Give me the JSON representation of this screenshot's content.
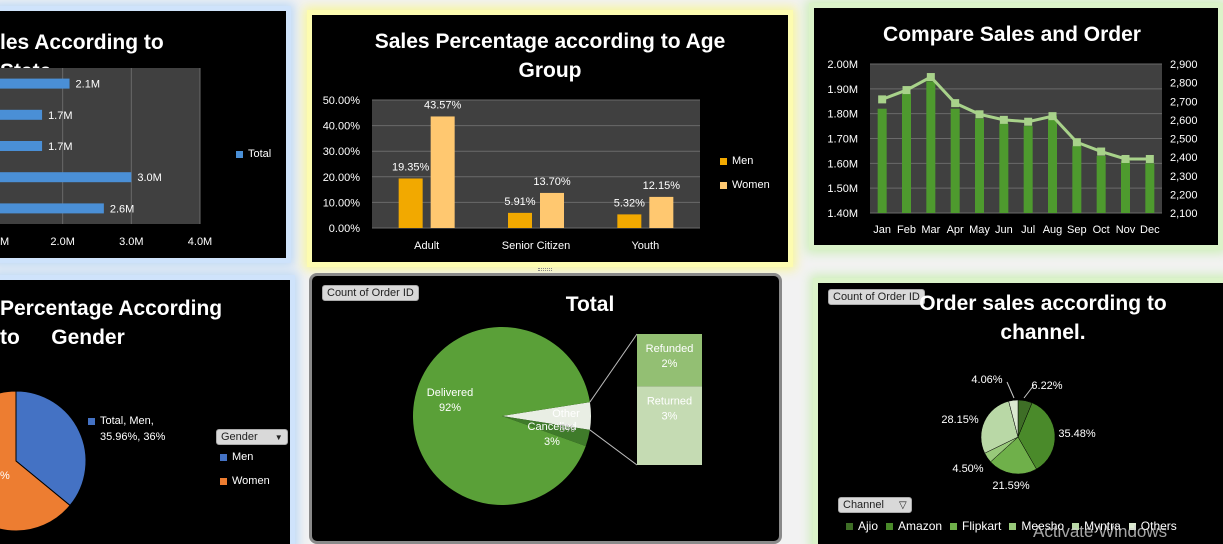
{
  "state_panel": {
    "title": "les According to State",
    "legend": "Total",
    "chart_data": {
      "type": "bar",
      "orientation": "horizontal",
      "title": "les According to State",
      "series": [
        {
          "name": "Total",
          "values": [
            2.1,
            1.7,
            1.7,
            3.0,
            2.6
          ]
        }
      ],
      "data_labels": [
        "2.1M",
        "1.7M",
        "1.7M",
        "3.0M",
        "2.6M"
      ],
      "xticks": [
        "M",
        "2.0M",
        "3.0M",
        "4.0M"
      ],
      "xlim": [
        1.0,
        4.0
      ],
      "grid": true,
      "legend_position": "right",
      "color": "#4a8fd6"
    }
  },
  "age_panel": {
    "title": "Sales Percentage  according to Age Group",
    "legend": [
      "Men",
      "Women"
    ],
    "chart_data": {
      "type": "bar",
      "title": "Sales Percentage  according to Age Group",
      "categories": [
        "Adult",
        "Senior Citizen",
        "Youth"
      ],
      "series": [
        {
          "name": "Men",
          "values": [
            19.35,
            5.91,
            5.32
          ],
          "labels": [
            "19.35%",
            "5.91%",
            "5.32%"
          ],
          "color": "#f2a900"
        },
        {
          "name": "Women",
          "values": [
            43.57,
            13.7,
            12.15
          ],
          "labels": [
            "43.57%",
            "13.70%",
            "12.15%"
          ],
          "color": "#ffc870"
        }
      ],
      "yticks": [
        "0.00%",
        "10.00%",
        "20.00%",
        "30.00%",
        "40.00%",
        "50.00%"
      ],
      "ylim": [
        0,
        50
      ],
      "grid": true,
      "legend_position": "right"
    }
  },
  "compare_panel": {
    "title": "Compare Sales and Order",
    "chart_data": {
      "type": "bar",
      "title": "Compare Sales and Order",
      "categories": [
        "Jan",
        "Feb",
        "Mar",
        "Apr",
        "May",
        "Jun",
        "Jul",
        "Aug",
        "Sep",
        "Oct",
        "Nov",
        "Dec"
      ],
      "series": [
        {
          "type": "bar",
          "axis": "left",
          "values": [
            1.82,
            1.88,
            1.93,
            1.82,
            1.78,
            1.76,
            1.75,
            1.79,
            1.67,
            1.63,
            1.61,
            1.6
          ],
          "color": "#4e9a2e"
        },
        {
          "type": "line",
          "axis": "right",
          "values": [
            2710,
            2760,
            2830,
            2690,
            2630,
            2600,
            2590,
            2620,
            2480,
            2430,
            2390,
            2390
          ],
          "color": "#a8d28a"
        }
      ],
      "yticks_left": [
        "1.40M",
        "1.50M",
        "1.60M",
        "1.70M",
        "1.80M",
        "1.90M",
        "2.00M"
      ],
      "ylim_left": [
        1.4,
        2.0
      ],
      "yticks_right": [
        "2,100",
        "2,200",
        "2,300",
        "2,400",
        "2,500",
        "2,600",
        "2,700",
        "2,800",
        "2,900"
      ],
      "ylim_right": [
        2100,
        2900
      ],
      "grid": true
    }
  },
  "gender_panel": {
    "title": "Percentage According to Gender",
    "title_line1": "Percentage According to",
    "title_line2": "Gender",
    "filter_label": "Gender",
    "legend": [
      "Men",
      "Women"
    ],
    "chart_data": {
      "type": "pie",
      "title": "Percentage According to Gender",
      "slices": [
        {
          "name": "Men",
          "value": 35.96,
          "color": "#4472c4"
        },
        {
          "name": "Women",
          "value": 64.04,
          "color": "#ed7d31"
        }
      ],
      "annotation_lines": [
        "Total, Men,",
        "35.96%, 36%"
      ],
      "partial_label": "%"
    }
  },
  "total_panel": {
    "title": "Total",
    "field_button": "Count of Order ID",
    "chart_data": {
      "type": "pie",
      "subtype": "bar-of-pie",
      "title": "Total",
      "slices": [
        {
          "name": "Delivered",
          "value": 92,
          "label": "92%",
          "color": "#5aa038"
        },
        {
          "name": "Cancelled",
          "value": 3,
          "label": "3%",
          "color": "#3f7b2a"
        },
        {
          "name": "Other",
          "value": 5,
          "label": "5%",
          "color": "#e9eee4"
        }
      ],
      "breakout": [
        {
          "name": "Refunded",
          "value": 2,
          "label": "2%",
          "color": "#93bf73"
        },
        {
          "name": "Returned",
          "value": 3,
          "label": "3%",
          "color": "#c5dbb3"
        }
      ]
    }
  },
  "channel_panel": {
    "title": "Order sales according to channel.",
    "title_line1": "Order sales according to",
    "title_line2": "channel.",
    "field_button": "Count of Order ID",
    "filter_label": "Channel",
    "chart_data": {
      "type": "pie",
      "title": "Order sales according to channel.",
      "slices": [
        {
          "name": "Ajio",
          "value": 6.22,
          "label": "6.22%",
          "color": "#3e6e26"
        },
        {
          "name": "Amazon",
          "value": 35.48,
          "label": "35.48%",
          "color": "#4a8a2a"
        },
        {
          "name": "Flipkart",
          "value": 21.59,
          "label": "21.59%",
          "color": "#6fb04a"
        },
        {
          "name": "Meesho",
          "value": 4.5,
          "label": "4.50%",
          "color": "#98c97a"
        },
        {
          "name": "Myntra",
          "value": 28.15,
          "label": "28.15%",
          "color": "#b9d8a6"
        },
        {
          "name": "Others",
          "value": 4.06,
          "label": "4.06%",
          "color": "#dbe9d0"
        }
      ],
      "legend_position": "bottom"
    }
  },
  "watermark": "Activate Windows"
}
